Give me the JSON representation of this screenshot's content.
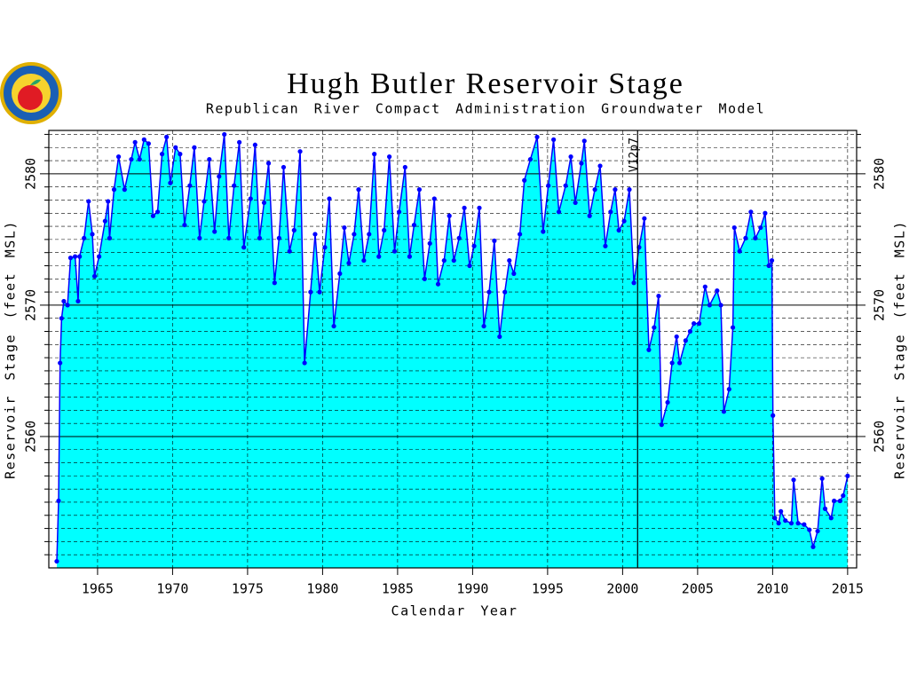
{
  "chart_data": {
    "type": "area",
    "title": "Hugh Butler Reservoir Stage",
    "subtitle": "Republican River Compact Administration Groundwater Model",
    "xlabel": "Calendar Year",
    "ylabel": "Reservoir Stage (feet MSL)",
    "annotations": [
      {
        "text": "V12p7",
        "x": 2001
      }
    ],
    "xlim": [
      1961.75,
      2015.6
    ],
    "xticks": [
      1965,
      1970,
      1975,
      1980,
      1985,
      1990,
      1995,
      2000,
      2005,
      2010,
      2015
    ],
    "ylim": [
      2550,
      2583.3
    ],
    "yticks": [
      2560,
      2570,
      2580
    ],
    "y2lim": [
      2550,
      2583.3
    ],
    "y2ticks": [
      2560,
      2570,
      2580
    ],
    "yminorticks": [
      2551,
      2552,
      2553,
      2554,
      2555,
      2556,
      2557,
      2558,
      2559,
      2561,
      2562,
      2563,
      2564,
      2565,
      2566,
      2567,
      2568,
      2569,
      2571,
      2572,
      2573,
      2574,
      2575,
      2576,
      2577,
      2578,
      2579,
      2581,
      2582,
      2583
    ],
    "grid": true,
    "line_color": "#0000ff",
    "fill_color": "#00ffff",
    "x": [
      1962.28,
      1962.4,
      1962.5,
      1962.6,
      1962.75,
      1963.0,
      1963.2,
      1963.5,
      1963.7,
      1963.8,
      1964.1,
      1964.4,
      1964.65,
      1964.8,
      1965.1,
      1965.5,
      1965.7,
      1965.8,
      1966.1,
      1966.4,
      1966.8,
      1967.25,
      1967.5,
      1967.8,
      1968.1,
      1968.4,
      1968.7,
      1969.0,
      1969.3,
      1969.6,
      1969.85,
      1970.2,
      1970.5,
      1970.8,
      1971.15,
      1971.45,
      1971.8,
      1972.1,
      1972.45,
      1972.8,
      1973.1,
      1973.45,
      1973.75,
      1974.1,
      1974.45,
      1974.75,
      1975.2,
      1975.5,
      1975.8,
      1976.1,
      1976.4,
      1976.8,
      1977.1,
      1977.4,
      1977.8,
      1978.1,
      1978.5,
      1978.8,
      1979.2,
      1979.5,
      1979.8,
      1980.15,
      1980.45,
      1980.75,
      1981.15,
      1981.45,
      1981.75,
      1982.1,
      1982.4,
      1982.75,
      1983.1,
      1983.45,
      1983.75,
      1984.1,
      1984.45,
      1984.8,
      1985.1,
      1985.5,
      1985.8,
      1986.1,
      1986.45,
      1986.8,
      1987.15,
      1987.45,
      1987.7,
      1988.1,
      1988.45,
      1988.75,
      1989.1,
      1989.45,
      1989.8,
      1990.1,
      1990.45,
      1990.75,
      1991.1,
      1991.45,
      1991.8,
      1992.15,
      1992.45,
      1992.75,
      1993.15,
      1993.45,
      1993.85,
      1994.3,
      1994.7,
      1995.05,
      1995.4,
      1995.75,
      1996.2,
      1996.55,
      1996.85,
      1997.25,
      1997.45,
      1997.8,
      1998.15,
      1998.5,
      1998.85,
      1999.2,
      1999.5,
      1999.75,
      2000.1,
      2000.45,
      2000.75,
      2001.1,
      2001.45,
      2001.75,
      2002.1,
      2002.4,
      2002.6,
      2003.0,
      2003.3,
      2003.6,
      2003.8,
      2004.2,
      2004.5,
      2004.75,
      2005.1,
      2005.5,
      2005.8,
      2006.3,
      2006.55,
      2006.75,
      2007.1,
      2007.35,
      2007.45,
      2007.8,
      2008.2,
      2008.55,
      2008.85,
      2009.2,
      2009.5,
      2009.75,
      2009.95,
      2010.02,
      2010.15,
      2010.4,
      2010.55,
      2010.85,
      2011.25,
      2011.4,
      2011.7,
      2012.1,
      2012.45,
      2012.7,
      2013.0,
      2013.3,
      2013.5,
      2013.9,
      2014.1,
      2014.5,
      2014.7,
      2015.0
    ],
    "values": [
      2550.5,
      2555.1,
      2565.6,
      2569,
      2570.3,
      2570,
      2573.6,
      2573.7,
      2570.3,
      2573.7,
      2575.1,
      2577.9,
      2575.4,
      2572.2,
      2573.7,
      2576.4,
      2577.9,
      2575.1,
      2578.8,
      2581.3,
      2578.8,
      2581.1,
      2582.4,
      2581.1,
      2582.6,
      2582.3,
      2576.8,
      2577.1,
      2581.5,
      2582.8,
      2579.3,
      2582,
      2581.5,
      2576.1,
      2579.1,
      2582,
      2575.1,
      2577.9,
      2581.1,
      2575.6,
      2579.8,
      2583,
      2575.1,
      2579.1,
      2582.4,
      2574.4,
      2578.1,
      2582.2,
      2575.1,
      2577.8,
      2580.8,
      2571.7,
      2575.1,
      2580.5,
      2574.1,
      2575.7,
      2581.7,
      2565.6,
      2571,
      2575.4,
      2571,
      2574.4,
      2578.1,
      2568.4,
      2572.4,
      2575.9,
      2573.2,
      2575.4,
      2578.8,
      2573.4,
      2575.4,
      2581.5,
      2573.7,
      2575.7,
      2581.3,
      2574.1,
      2577.1,
      2580.5,
      2573.7,
      2576.1,
      2578.8,
      2572,
      2574.7,
      2578.1,
      2571.6,
      2573.4,
      2576.8,
      2573.4,
      2575.1,
      2577.4,
      2573,
      2574.5,
      2577.4,
      2568.4,
      2571,
      2574.9,
      2567.6,
      2571,
      2573.4,
      2572.4,
      2575.4,
      2579.5,
      2581.1,
      2582.8,
      2575.6,
      2579.1,
      2582.6,
      2577.1,
      2579.1,
      2581.3,
      2577.8,
      2580.8,
      2582.5,
      2576.8,
      2578.8,
      2580.6,
      2574.5,
      2577.1,
      2578.8,
      2575.7,
      2576.4,
      2578.8,
      2571.7,
      2574.4,
      2576.6,
      2566.6,
      2568.3,
      2570.7,
      2560.9,
      2562.6,
      2565.6,
      2567.6,
      2565.6,
      2567.3,
      2568,
      2568.6,
      2568.6,
      2571.4,
      2570,
      2571.1,
      2570,
      2561.9,
      2563.6,
      2568.3,
      2575.9,
      2574.1,
      2575.1,
      2577.1,
      2575.1,
      2575.9,
      2577,
      2573,
      2573.4,
      2561.6,
      2553.8,
      2553.4,
      2554.3,
      2553.6,
      2553.4,
      2556.7,
      2553.4,
      2553.3,
      2552.9,
      2551.6,
      2552.8,
      2556.8,
      2554.5,
      2553.8,
      2555.1,
      2555.1,
      2555.5,
      2557
    ]
  }
}
